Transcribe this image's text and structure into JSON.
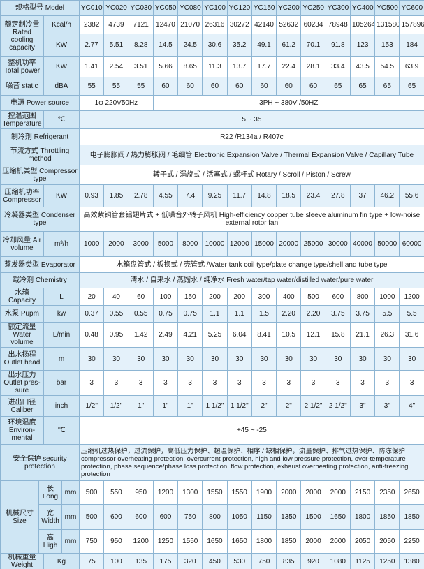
{
  "header": {
    "label": "规格型号 Model",
    "models": [
      "YC010",
      "YC020",
      "YC030",
      "YC050",
      "YC080",
      "YC100",
      "YC120",
      "YC150",
      "YC200",
      "YC250",
      "YC300",
      "YC400",
      "YC500",
      "YC600"
    ]
  },
  "rows": [
    {
      "label": "额定制冷量 Rated cooling capacity",
      "rows": [
        {
          "unit": "Kcal/h",
          "values": [
            "2382",
            "4739",
            "7121",
            "12470",
            "21070",
            "26316",
            "30272",
            "42140",
            "52632",
            "60234",
            "78948",
            "105264",
            "131580",
            "157896"
          ]
        },
        {
          "unit": "KW",
          "values": [
            "2.77",
            "5.51",
            "8.28",
            "14.5",
            "24.5",
            "30.6",
            "35.2",
            "49.1",
            "61.2",
            "70.1",
            "91.8",
            "123",
            "153",
            "184"
          ]
        }
      ]
    },
    {
      "label": "整机功率 Total power",
      "unit": "KW",
      "values": [
        "1.41",
        "2.54",
        "3.51",
        "5.66",
        "8.65",
        "11.3",
        "13.7",
        "17.7",
        "22.4",
        "28.1",
        "33.4",
        "43.5",
        "54.5",
        "63.9"
      ]
    },
    {
      "label": "噪音 static",
      "unit": "dBA",
      "values": [
        "55",
        "55",
        "55",
        "60",
        "60",
        "60",
        "60",
        "60",
        "60",
        "60",
        "65",
        "65",
        "65",
        "65"
      ]
    },
    {
      "label": "电源 Power source",
      "values": [
        "1φ 220V50Hz",
        "3PH ~ 380V /50HZ"
      ]
    },
    {
      "label": "控温范围 Temperature",
      "unit": "℃",
      "values": [
        "5 ~ 35"
      ]
    },
    {
      "label": "制冷剂 Refrigerant",
      "values": [
        "R22 /R134a / R407c"
      ]
    },
    {
      "label": "节流方式 Throttling method",
      "values": [
        "电子膨胀阀 / 热力膨胀阀 / 毛细管 Electronic Expansion Valve / Thermal Expansion Valve / Capillary Tube"
      ]
    },
    {
      "label": "压缩机类型 Compressor type",
      "values": [
        "转子式 / 涡旋式 / 活塞式 / 螺杆式 Rotary / Scroll / Piston / Screw"
      ]
    },
    {
      "label": "压缩机功率 Compressor",
      "unit": "KW",
      "values": [
        "0.93",
        "1.85",
        "2.78",
        "4.55",
        "7.4",
        "9.25",
        "11.7",
        "14.8",
        "18.5",
        "23.4",
        "27.8",
        "37",
        "46.2",
        "55.6"
      ]
    },
    {
      "label": "冷凝器类型 Condenser type",
      "values": [
        "高效紫铜管套铝翅片式 + 低噪音外转子风机 High-efficiency copper tube sleeve aluminum fin type + low-noise external rotor fan"
      ]
    },
    {
      "label": "冷却风量 Air volume",
      "unit": "m³/h",
      "values": [
        "1000",
        "2000",
        "3000",
        "5000",
        "8000",
        "10000",
        "12000",
        "15000",
        "20000",
        "25000",
        "30000",
        "40000",
        "50000",
        "60000"
      ]
    },
    {
      "label": "蒸发器类型 Evaporator",
      "values": [
        "水箱盘管式 / 板换式 / 壳管式 /Water tank coil type/plate change type/shell and tube type"
      ]
    },
    {
      "label": "载冷剂 Chemistry",
      "values": [
        "清水 / 自来水 / 蒸馏水 / 纯净水 Fresh water/tap water/distilled water/pure water"
      ]
    },
    {
      "label": "水箱 Capacity",
      "unit": "L",
      "values": [
        "20",
        "40",
        "60",
        "100",
        "150",
        "200",
        "200",
        "300",
        "400",
        "500",
        "600",
        "800",
        "1000",
        "1200"
      ]
    },
    {
      "label": "水泵 Pupm",
      "unit": "kw",
      "values": [
        "0.37",
        "0.55",
        "0.55",
        "0.75",
        "0.75",
        "1.1",
        "1.1",
        "1.5",
        "2.20",
        "2.20",
        "3.75",
        "3.75",
        "5.5",
        "5.5"
      ]
    },
    {
      "label": "额定流量 Water volume",
      "unit": "L/min",
      "values": [
        "0.48",
        "0.95",
        "1.42",
        "2.49",
        "4.21",
        "5.25",
        "6.04",
        "8.41",
        "10.5",
        "12.1",
        "15.8",
        "21.1",
        "26.3",
        "31.6"
      ]
    },
    {
      "label": "出水扬程 Outlet head",
      "unit": "m",
      "values": [
        "30",
        "30",
        "30",
        "30",
        "30",
        "30",
        "30",
        "30",
        "30",
        "30",
        "30",
        "30",
        "30",
        "30"
      ]
    },
    {
      "label": "出水压力 Outlet pres-sure",
      "unit": "bar",
      "values": [
        "3",
        "3",
        "3",
        "3",
        "3",
        "3",
        "3",
        "3",
        "3",
        "3",
        "3",
        "3",
        "3",
        "3"
      ]
    },
    {
      "label": "进出口径 Caliber",
      "unit": "inch",
      "values": [
        "1/2\"",
        "1/2\"",
        "1\"",
        "1\"",
        "1\"",
        "1 1/2\"",
        "1 1/2\"",
        "2\"",
        "2\"",
        "2 1/2\"",
        "2 1/2\"",
        "3\"",
        "3\"",
        "4\""
      ]
    },
    {
      "label": "环境温度 Environ-mental",
      "unit": "℃",
      "values": [
        "+45 ~ -25"
      ]
    },
    {
      "label": "安全保护 security protection",
      "values": [
        "压缩机过热保护，过流保护，高低压力保护、超温保护、相序 / 缺相保护，流量保护、排气过热保护、防冻保护 compressor overheating protection, overcurrent protection, high and low pressure protection, over-temperature protection, phase sequence/phase loss protection, flow protection, exhaust overheating protection, anti-freezing protection"
      ]
    },
    {
      "label": "机械尺寸 Size",
      "rows": [
        {
          "sub": "长 Long",
          "unit": "mm",
          "values": [
            "500",
            "550",
            "950",
            "1200",
            "1300",
            "1550",
            "1550",
            "1900",
            "2000",
            "2000",
            "2000",
            "2150",
            "2350",
            "2650"
          ]
        },
        {
          "sub": "宽 Width",
          "unit": "mm",
          "values": [
            "500",
            "600",
            "600",
            "600",
            "750",
            "800",
            "1050",
            "1150",
            "1350",
            "1500",
            "1650",
            "1800",
            "1850",
            "1850"
          ]
        },
        {
          "sub": "高 High",
          "unit": "mm",
          "values": [
            "750",
            "950",
            "1200",
            "1250",
            "1550",
            "1650",
            "1650",
            "1800",
            "1850",
            "2000",
            "2000",
            "2050",
            "2050",
            "2250"
          ]
        }
      ]
    },
    {
      "label": "机械重量 Weight",
      "unit": "Kg",
      "values": [
        "75",
        "100",
        "135",
        "175",
        "320",
        "450",
        "530",
        "750",
        "835",
        "920",
        "1080",
        "1125",
        "1250",
        "1380"
      ]
    }
  ]
}
